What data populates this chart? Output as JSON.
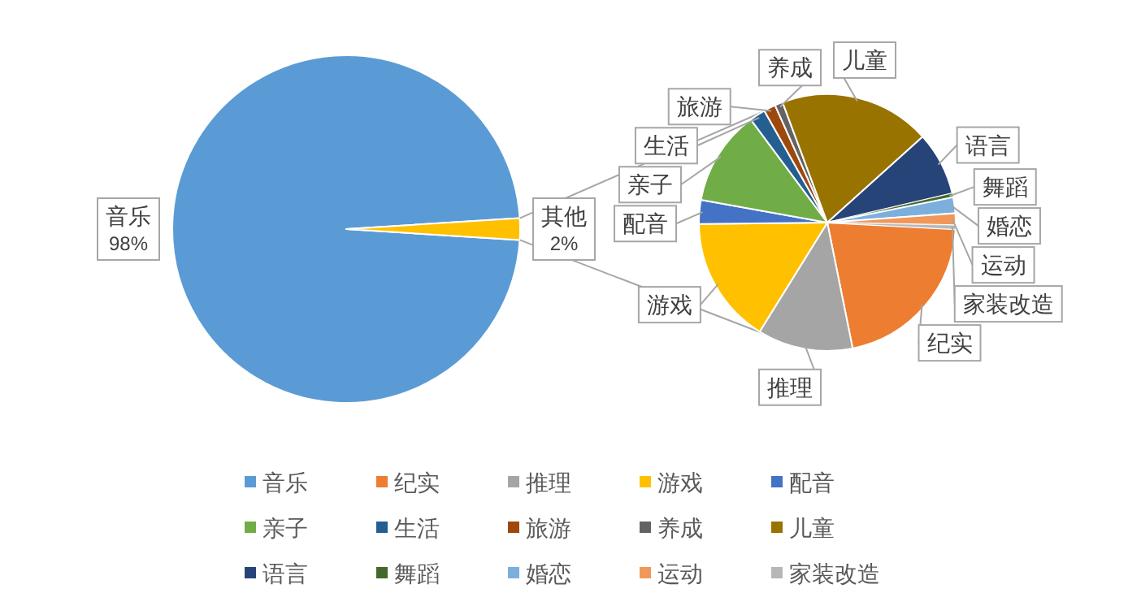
{
  "chart_data": [
    {
      "type": "pie",
      "categories": [
        "音乐",
        "其他"
      ],
      "values": [
        98,
        2
      ],
      "value_labels": [
        "98%",
        "2%"
      ],
      "colors": [
        "#5b9bd5",
        "#ffc000"
      ],
      "legend": "bottom"
    },
    {
      "type": "pie",
      "categories": [
        "纪实",
        "推理",
        "游戏",
        "配音",
        "亲子",
        "生活",
        "旅游",
        "养成",
        "儿童",
        "语言",
        "舞蹈",
        "婚恋",
        "运动",
        "家装改造"
      ],
      "values": [
        21,
        12,
        16,
        3,
        12,
        2,
        1.5,
        1,
        19,
        8,
        0.5,
        2,
        1.5,
        0.5
      ],
      "colors": [
        "#ed7d31",
        "#a5a5a5",
        "#ffc000",
        "#4472c4",
        "#70ad47",
        "#255e91",
        "#9e480e",
        "#636363",
        "#997300",
        "#264478",
        "#43682b",
        "#7cafdd",
        "#f1975a",
        "#b7b7b7"
      ],
      "legend": "bottom"
    }
  ]
}
